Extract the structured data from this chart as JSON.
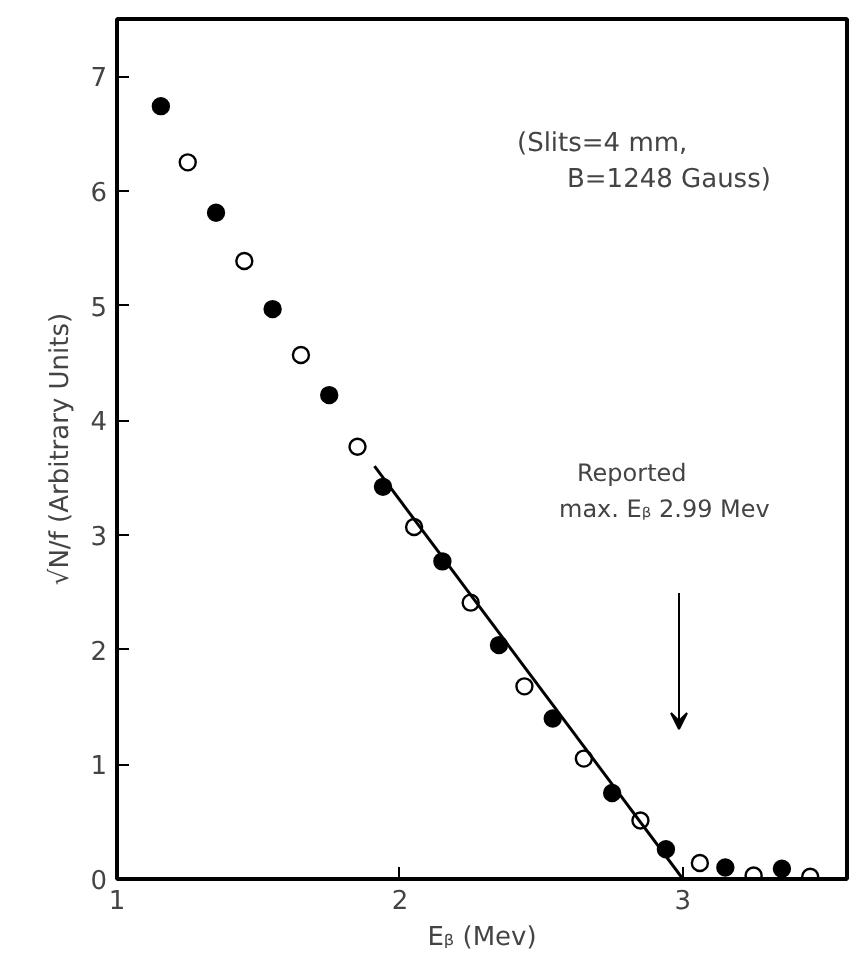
{
  "chart_data": {
    "type": "scatter",
    "xlabel": "Eᵦ (Mev)",
    "ylabel": "√N/f (Arbitrary Units)",
    "xlim": [
      1,
      3.58
    ],
    "ylim": [
      0,
      7.5
    ],
    "xticks": [
      1,
      2,
      3
    ],
    "yticks": [
      0,
      1,
      2,
      3,
      4,
      5,
      6,
      7
    ],
    "grid": false,
    "marker": "circle",
    "series": [
      {
        "color": "#000000",
        "x": [
          1.155,
          1.35,
          1.55,
          1.75,
          1.94,
          2.15,
          2.35,
          2.54,
          2.75,
          2.94,
          3.15,
          3.35
        ],
        "values": [
          6.74,
          5.81,
          4.97,
          4.22,
          3.42,
          2.77,
          2.04,
          1.4,
          0.75,
          0.26,
          0.1,
          0.09
        ]
      },
      {
        "color": "#ffffff",
        "x": [
          1.25,
          1.45,
          1.65,
          1.85,
          2.05,
          2.25,
          2.44,
          2.65,
          2.85,
          3.06,
          3.25,
          3.45
        ],
        "values": [
          6.25,
          5.39,
          4.57,
          3.77,
          3.07,
          2.41,
          1.68,
          1.05,
          0.51,
          0.14,
          0.03,
          0.02
        ]
      },
      {
        "type": "line",
        "marker": "none",
        "color": "#000000",
        "x": [
          1.91,
          3.0
        ],
        "values": [
          3.6,
          0
        ]
      }
    ],
    "annotations": [
      "(Slits=4 mm,\nB=1248 Gauss)",
      "Reported\nmax. Eᵦ 2.99 Mev"
    ]
  }
}
